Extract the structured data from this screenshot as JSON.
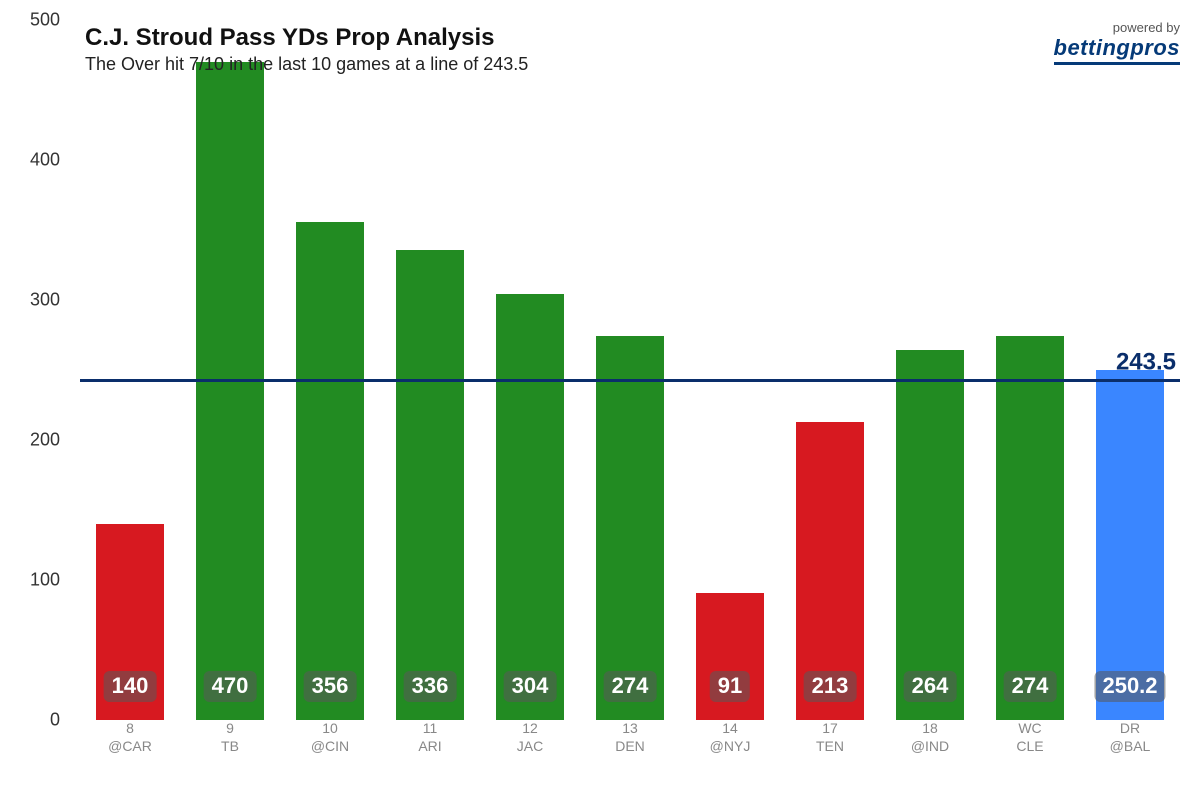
{
  "chart": {
    "type": "bar",
    "title": "C.J. Stroud Pass YDs Prop Analysis",
    "subtitle": "The Over hit 7/10 in the last 10 games at a line of 243.5",
    "background_color": "#ffffff",
    "title_color": "#111111",
    "title_fontsize": 24,
    "subtitle_color": "#222222",
    "subtitle_fontsize": 18,
    "y_axis": {
      "min": 0,
      "max": 500,
      "tick_step": 100,
      "ticks": [
        0,
        100,
        200,
        300,
        400,
        500
      ],
      "tick_color": "#333333",
      "tick_fontsize": 18
    },
    "x_axis": {
      "tick_color": "#888888",
      "tick_fontsize": 14
    },
    "reference_line": {
      "value": 243.5,
      "label": "243.5",
      "line_color": "#0a2e6b",
      "line_width": 3,
      "label_color": "#0a2e6b",
      "label_fontsize": 24
    },
    "bar_width_ratio": 0.68,
    "value_badge": {
      "bg_color": "rgba(90,90,90,0.55)",
      "text_color": "#ffffff",
      "fontsize": 22,
      "border_radius": 6
    },
    "colors": {
      "over": "#228b22",
      "under": "#d71920",
      "projection": "#3a86ff"
    },
    "bars": [
      {
        "x_line1": "8",
        "x_line2": "@CAR",
        "value": 140,
        "display": "140",
        "color": "#d71920"
      },
      {
        "x_line1": "9",
        "x_line2": "TB",
        "value": 470,
        "display": "470",
        "color": "#228b22"
      },
      {
        "x_line1": "10",
        "x_line2": "@CIN",
        "value": 356,
        "display": "356",
        "color": "#228b22"
      },
      {
        "x_line1": "11",
        "x_line2": "ARI",
        "value": 336,
        "display": "336",
        "color": "#228b22"
      },
      {
        "x_line1": "12",
        "x_line2": "JAC",
        "value": 304,
        "display": "304",
        "color": "#228b22"
      },
      {
        "x_line1": "13",
        "x_line2": "DEN",
        "value": 274,
        "display": "274",
        "color": "#228b22"
      },
      {
        "x_line1": "14",
        "x_line2": "@NYJ",
        "value": 91,
        "display": "91",
        "color": "#d71920"
      },
      {
        "x_line1": "17",
        "x_line2": "TEN",
        "value": 213,
        "display": "213",
        "color": "#d71920"
      },
      {
        "x_line1": "18",
        "x_line2": "@IND",
        "value": 264,
        "display": "264",
        "color": "#228b22"
      },
      {
        "x_line1": "WC",
        "x_line2": "CLE",
        "value": 274,
        "display": "274",
        "color": "#228b22"
      },
      {
        "x_line1": "DR",
        "x_line2": "@BAL",
        "value": 250.2,
        "display": "250.2",
        "color": "#3a86ff"
      }
    ]
  },
  "branding": {
    "tagline": "powered by",
    "logo_text": "bettingpros",
    "logo_color": "#053a78"
  }
}
